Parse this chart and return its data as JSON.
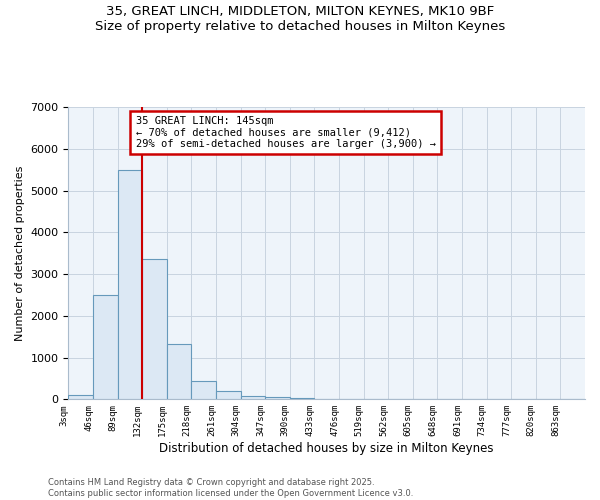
{
  "title_line1": "35, GREAT LINCH, MIDDLETON, MILTON KEYNES, MK10 9BF",
  "title_line2": "Size of property relative to detached houses in Milton Keynes",
  "xlabel": "Distribution of detached houses by size in Milton Keynes",
  "ylabel": "Number of detached properties",
  "bin_labels": [
    "3sqm",
    "46sqm",
    "89sqm",
    "132sqm",
    "175sqm",
    "218sqm",
    "261sqm",
    "304sqm",
    "347sqm",
    "390sqm",
    "433sqm",
    "476sqm",
    "519sqm",
    "562sqm",
    "605sqm",
    "648sqm",
    "691sqm",
    "734sqm",
    "777sqm",
    "820sqm",
    "863sqm"
  ],
  "bin_edges": [
    3,
    46,
    89,
    132,
    175,
    218,
    261,
    304,
    347,
    390,
    433,
    476,
    519,
    562,
    605,
    648,
    691,
    734,
    777,
    820,
    863,
    906
  ],
  "bar_heights": [
    100,
    2500,
    5500,
    3350,
    1320,
    440,
    200,
    90,
    50,
    20,
    0,
    0,
    0,
    0,
    0,
    0,
    0,
    0,
    0,
    0,
    0
  ],
  "bar_color": "#dce8f4",
  "bar_edge_color": "#6699bb",
  "redline_x": 132,
  "annotation_text": "35 GREAT LINCH: 145sqm\n← 70% of detached houses are smaller (9,412)\n29% of semi-detached houses are larger (3,900) →",
  "annotation_box_color": "#ffffff",
  "annotation_box_edge_color": "#cc0000",
  "redline_color": "#cc0000",
  "ylim": [
    0,
    7000
  ],
  "yticks": [
    0,
    1000,
    2000,
    3000,
    4000,
    5000,
    6000,
    7000
  ],
  "grid_color": "#c8d4e0",
  "background_color": "#ffffff",
  "plot_bg_color": "#eef4fa",
  "footnote1": "Contains HM Land Registry data © Crown copyright and database right 2025.",
  "footnote2": "Contains public sector information licensed under the Open Government Licence v3.0."
}
